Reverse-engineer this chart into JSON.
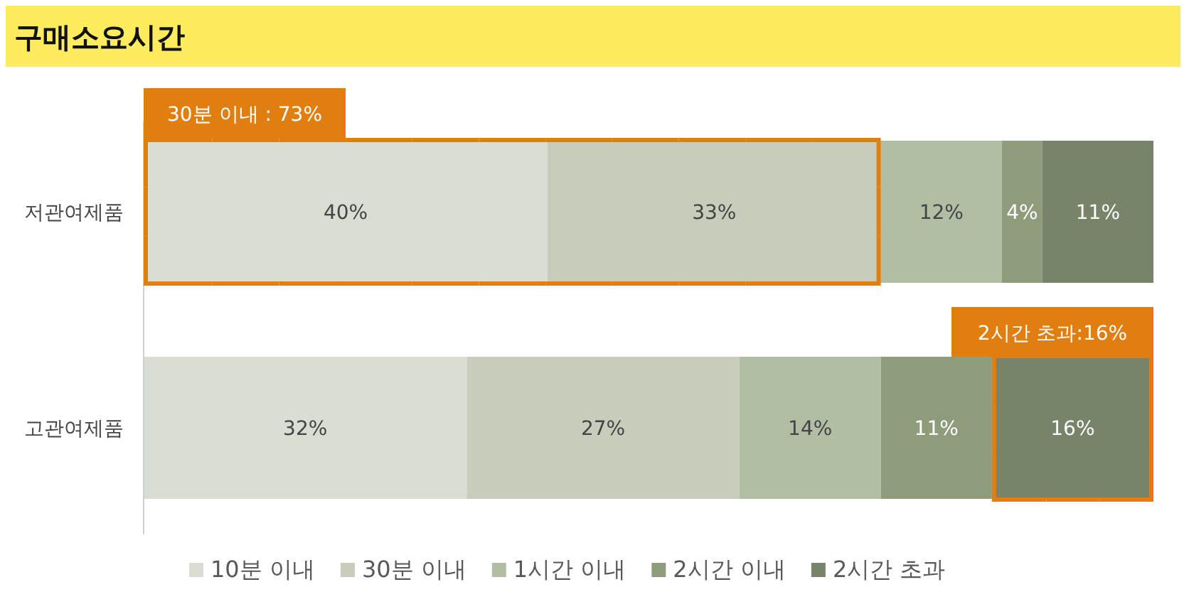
{
  "chart_data": {
    "type": "bar",
    "orientation": "horizontal",
    "stacked": true,
    "title": "구매소요시간",
    "categories": [
      "저관여제품",
      "고관여제품"
    ],
    "legend": "bottom",
    "series": [
      {
        "name": "10분 이내",
        "color": "#d9ded3",
        "values": [
          40,
          32
        ],
        "value_labels": [
          "40%",
          "32%"
        ]
      },
      {
        "name": "30분 이내",
        "color": "#c6cebb",
        "values": [
          33,
          27
        ],
        "value_labels": [
          "33%",
          "27%"
        ]
      },
      {
        "name": "1시간 이내",
        "color": "#b2bea3",
        "values": [
          12,
          14
        ],
        "value_labels": [
          "12%",
          "14%"
        ]
      },
      {
        "name": "2시간 이내",
        "color": "#8e9c7c",
        "values": [
          4,
          11
        ],
        "value_labels": [
          "4%",
          "11%"
        ]
      },
      {
        "name": "2시간 초과",
        "color": "#77846a",
        "values": [
          11,
          16
        ],
        "value_labels": [
          "11%",
          "16%"
        ]
      }
    ],
    "annotations": [
      "30분 이내 : 73%",
      "2시간 초과:16%"
    ]
  }
}
